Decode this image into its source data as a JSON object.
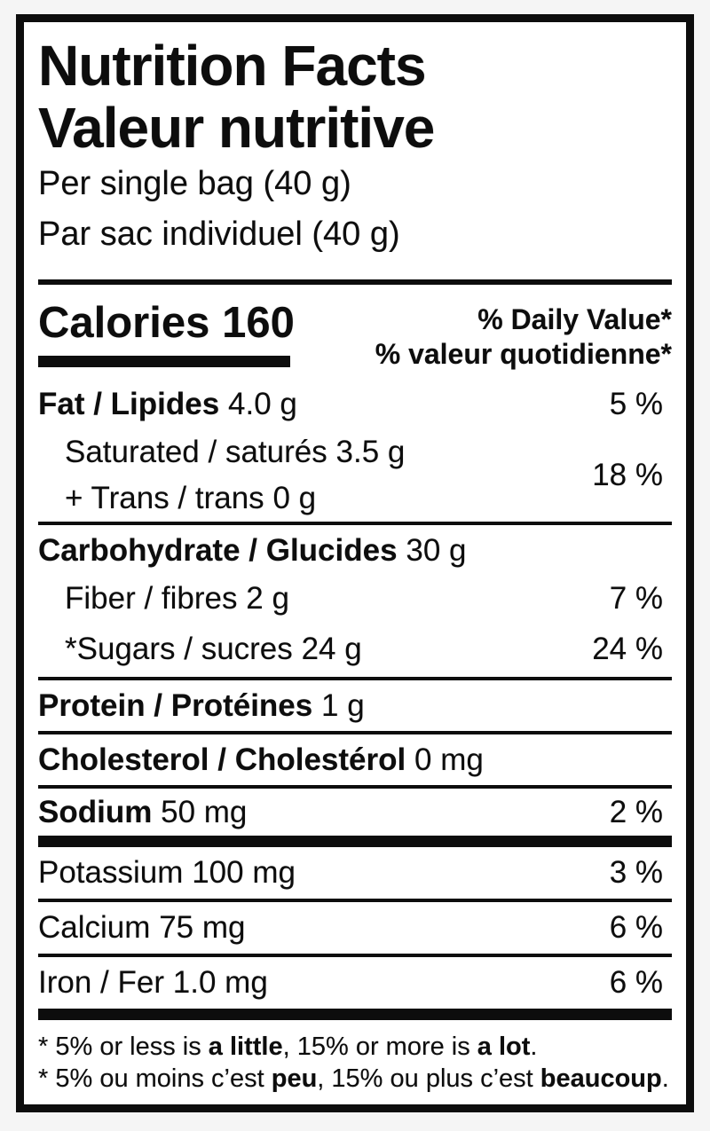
{
  "label": {
    "title_en": "Nutrition Facts",
    "title_fr": "Valeur nutritive",
    "serving_en": "Per single bag (40 g)",
    "serving_fr": "Par sac individuel (40 g)",
    "calories_label": "Calories",
    "calories_value": "160",
    "dv_header_en": "% Daily Value*",
    "dv_header_fr": "% valeur quotidienne*"
  },
  "nutrients": {
    "fat": {
      "name": "Fat / Lipides",
      "amount": "4.0 g",
      "dv": "5 %"
    },
    "saturated": {
      "name": "Saturated / saturés",
      "amount": "3.5 g"
    },
    "trans": {
      "name": "+ Trans / trans",
      "amount": "0 g"
    },
    "saturated_trans_dv": "18 %",
    "carbohydrate": {
      "name": "Carbohydrate / Glucides",
      "amount": "30 g"
    },
    "fiber": {
      "name": "Fiber / fibres",
      "amount": "2 g",
      "dv": "7 %"
    },
    "sugars": {
      "name": "*Sugars / sucres",
      "amount": "24 g",
      "dv": "24 %"
    },
    "protein": {
      "name": "Protein / Protéines",
      "amount": "1 g"
    },
    "cholesterol": {
      "name": "Cholesterol / Cholestérol",
      "amount": "0 mg"
    },
    "sodium": {
      "name": "Sodium",
      "amount": "50 mg",
      "dv": "2 %"
    },
    "potassium": {
      "name": "Potassium",
      "amount": "100 mg",
      "dv": "3 %"
    },
    "calcium": {
      "name": "Calcium",
      "amount": "75 mg",
      "dv": "6 %"
    },
    "iron": {
      "name": "Iron / Fer",
      "amount": "1.0 mg",
      "dv": "6 %"
    }
  },
  "footnote_en": {
    "t0": "* 5% or less is ",
    "b1": "a little",
    "t2": ", 15% or more is ",
    "b3": "a lot",
    "t4": "."
  },
  "footnote_fr": {
    "t0": "* 5% ou moins c’est ",
    "b1": "peu",
    "t2": ", 15% ou plus c’est ",
    "b3": "beaucoup",
    "t4": "."
  },
  "colors": {
    "ink": "#0d0d0d",
    "paper": "#ffffff",
    "page_bg": "#f5f5f5"
  }
}
